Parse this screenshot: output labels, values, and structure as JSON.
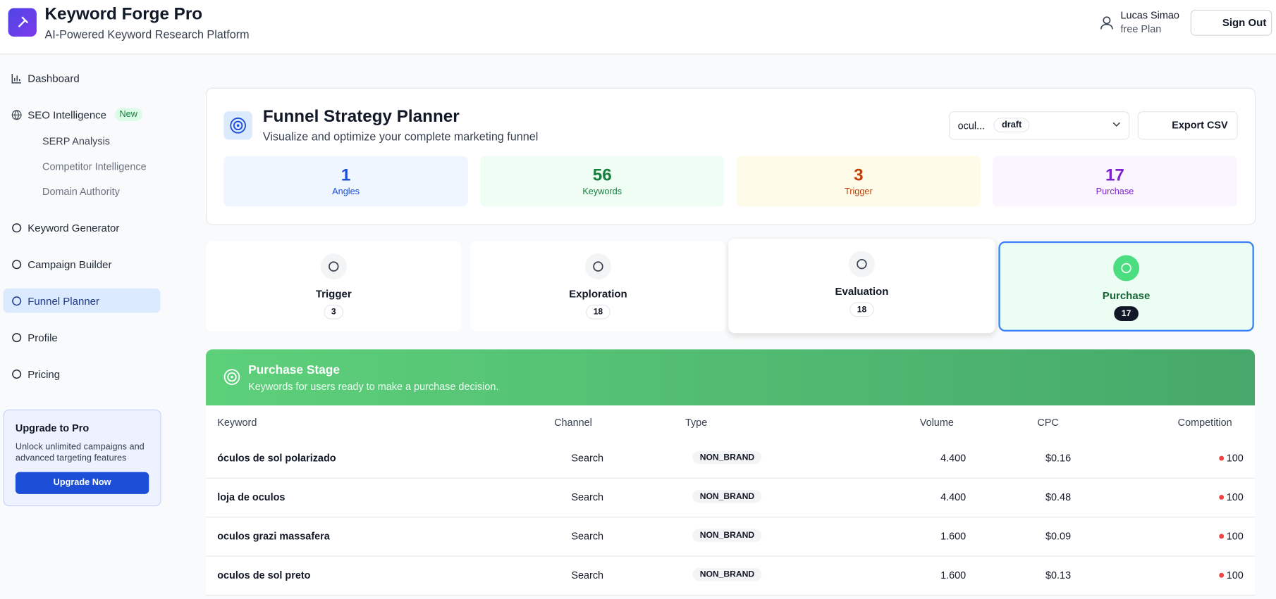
{
  "header": {
    "title": "Keyword Forge Pro",
    "subtitle": "AI-Powered Keyword Research Platform",
    "user": "Lucas Simao",
    "plan": "free Plan",
    "sign_out": "Sign Out"
  },
  "sidebar": {
    "dashboard": "Dashboard",
    "seo": "SEO Intelligence",
    "new_badge": "New",
    "sub_items": [
      "SERP Analysis",
      "Competitor Intelligence",
      "Domain Authority"
    ],
    "items": [
      "Keyword Generator",
      "Campaign Builder",
      "Funnel Planner",
      "Profile",
      "Pricing"
    ],
    "upgrade": {
      "title": "Upgrade to Pro",
      "text": "Unlock unlimited campaigns and advanced targeting features",
      "button": "Upgrade Now"
    }
  },
  "planner": {
    "title": "Funnel Strategy Planner",
    "subtitle": "Visualize and optimize your complete marketing funnel",
    "select": "ocul...",
    "status": "draft",
    "export": "Export CSV",
    "stats": [
      {
        "value": "1",
        "label": "Angles"
      },
      {
        "value": "56",
        "label": "Keywords"
      },
      {
        "value": "3",
        "label": "Trigger"
      },
      {
        "value": "17",
        "label": "Purchase"
      }
    ],
    "stages": [
      {
        "name": "Trigger",
        "count": "3"
      },
      {
        "name": "Exploration",
        "count": "18"
      },
      {
        "name": "Evaluation",
        "count": "18"
      },
      {
        "name": "Purchase",
        "count": "17"
      }
    ]
  },
  "stage_panel": {
    "title": "Purchase Stage",
    "subtitle": "Keywords for users ready to make a purchase decision."
  },
  "table": {
    "columns": [
      "Keyword",
      "Channel",
      "Type",
      "Volume",
      "CPC",
      "Competition"
    ],
    "rows": [
      [
        "óculos de sol polarizado",
        "Search",
        "NON_BRAND",
        "4.400",
        "$0.16",
        "100"
      ],
      [
        "loja de oculos",
        "Search",
        "NON_BRAND",
        "4.400",
        "$0.48",
        "100"
      ],
      [
        "oculos grazi massafera",
        "Search",
        "NON_BRAND",
        "1.600",
        "$0.09",
        "100"
      ],
      [
        "oculos de sol preto",
        "Search",
        "NON_BRAND",
        "1.600",
        "$0.13",
        "100"
      ]
    ]
  }
}
